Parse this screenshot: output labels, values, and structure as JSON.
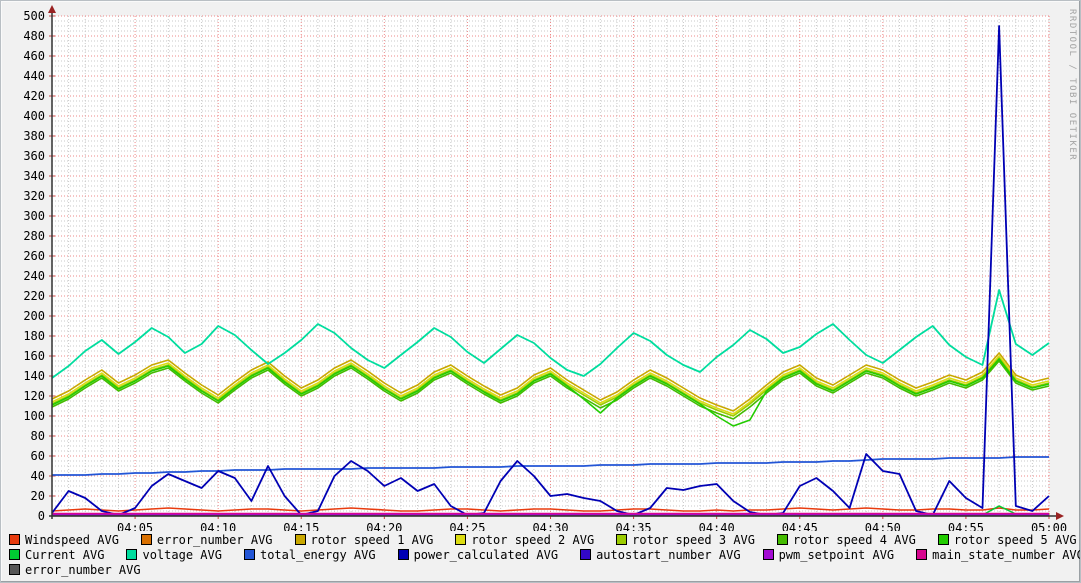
{
  "watermark": "RRDTOOL / TOBI OETIKER",
  "palette": {
    "plot_background": "#ffffff",
    "outer_background": "#f1f1f1",
    "major_grid": "#ee8888",
    "minor_grid": "#c9c9c9",
    "axis": "#333333",
    "arrow": "#992222",
    "tick_major": "#cc4444",
    "tick_minor": "#999999",
    "label_color": "#000000",
    "watermark_color": "#a3a3a3"
  },
  "chart_data": {
    "type": "line",
    "title": "",
    "xlabel": "",
    "ylabel": "",
    "grid": true,
    "legend_position": "bottom",
    "ylim": [
      0,
      500
    ],
    "y_major_step": 20,
    "y_minor_step": 5,
    "y_tick_labels": [
      "0",
      "20",
      "40",
      "60",
      "80",
      "100",
      "120",
      "140",
      "160",
      "180",
      "200",
      "220",
      "240",
      "260",
      "280",
      "300",
      "320",
      "340",
      "360",
      "380",
      "400",
      "420",
      "440",
      "460",
      "480",
      "500"
    ],
    "x_range_minutes": [
      0,
      60
    ],
    "x_minor_step_minutes": 1,
    "x_major_step_minutes": 5,
    "x_tick_labels": [
      {
        "t": 5,
        "label": "04:05"
      },
      {
        "t": 10,
        "label": "04:10"
      },
      {
        "t": 15,
        "label": "04:15"
      },
      {
        "t": 20,
        "label": "04:20"
      },
      {
        "t": 25,
        "label": "04:25"
      },
      {
        "t": 30,
        "label": "04:30"
      },
      {
        "t": 35,
        "label": "04:35"
      },
      {
        "t": 40,
        "label": "04:40"
      },
      {
        "t": 45,
        "label": "04:45"
      },
      {
        "t": 50,
        "label": "04:50"
      },
      {
        "t": 55,
        "label": "04:55"
      },
      {
        "t": 60,
        "label": "05:00"
      }
    ],
    "x": [
      0,
      1,
      2,
      3,
      4,
      5,
      6,
      7,
      8,
      9,
      10,
      11,
      12,
      13,
      14,
      15,
      16,
      17,
      18,
      19,
      20,
      21,
      22,
      23,
      24,
      25,
      26,
      27,
      28,
      29,
      30,
      31,
      32,
      33,
      34,
      35,
      36,
      37,
      38,
      39,
      40,
      41,
      42,
      43,
      44,
      45,
      46,
      47,
      48,
      49,
      50,
      51,
      52,
      53,
      54,
      55,
      56,
      57,
      58,
      59,
      60
    ],
    "series": [
      {
        "name": "Windspeed AVG",
        "color": "#e83b0e",
        "legend_row": 0,
        "width": 1.6,
        "values": [
          5,
          6,
          7,
          6,
          5,
          6,
          7,
          8,
          7,
          6,
          5,
          6,
          7,
          7,
          6,
          5,
          6,
          7,
          8,
          7,
          6,
          5,
          5,
          6,
          7,
          7,
          6,
          5,
          6,
          7,
          7,
          6,
          5,
          5,
          6,
          7,
          7,
          6,
          5,
          5,
          6,
          5,
          6,
          6,
          7,
          8,
          7,
          6,
          7,
          8,
          7,
          6,
          6,
          7,
          7,
          6,
          6,
          8,
          6,
          6,
          7
        ]
      },
      {
        "name": "error_number AVG",
        "color": "#d97000",
        "legend_row": 0,
        "width": 1.4,
        "flat": 0.3
      },
      {
        "name": "rotor speed 1 AVG",
        "color": "#c9a800",
        "legend_row": 0,
        "width": 1.6,
        "values": [
          117,
          125,
          136,
          146,
          133,
          141,
          151,
          156,
          143,
          131,
          121,
          134,
          146,
          154,
          140,
          128,
          136,
          148,
          156,
          145,
          133,
          123,
          131,
          144,
          151,
          140,
          130,
          121,
          128,
          141,
          148,
          136,
          126,
          116,
          124,
          136,
          146,
          138,
          128,
          118,
          111,
          105,
          117,
          131,
          144,
          151,
          138,
          131,
          141,
          151,
          146,
          136,
          128,
          134,
          141,
          136,
          144,
          163,
          141,
          134,
          138
        ]
      },
      {
        "name": "rotor speed 2 AVG",
        "color": "#dcdc12",
        "legend_row": 0,
        "width": 1.6,
        "values": [
          114,
          122,
          133,
          143,
          130,
          138,
          148,
          153,
          140,
          128,
          118,
          131,
          143,
          151,
          137,
          125,
          133,
          145,
          153,
          142,
          130,
          120,
          128,
          141,
          148,
          137,
          127,
          118,
          125,
          138,
          145,
          133,
          123,
          113,
          121,
          133,
          143,
          135,
          125,
          115,
          108,
          102,
          114,
          128,
          141,
          148,
          135,
          128,
          138,
          148,
          143,
          133,
          125,
          131,
          138,
          133,
          141,
          160,
          138,
          131,
          135
        ]
      },
      {
        "name": "rotor speed 3 AVG",
        "color": "#9ccc00",
        "legend_row": 0,
        "width": 1.6,
        "values": [
          112,
          120,
          131,
          141,
          128,
          136,
          146,
          151,
          138,
          126,
          116,
          129,
          141,
          149,
          135,
          123,
          131,
          143,
          151,
          140,
          128,
          118,
          126,
          139,
          146,
          135,
          125,
          116,
          123,
          136,
          143,
          131,
          121,
          111,
          119,
          131,
          141,
          133,
          123,
          113,
          106,
          100,
          112,
          126,
          139,
          146,
          133,
          126,
          136,
          146,
          141,
          131,
          123,
          129,
          136,
          131,
          139,
          158,
          136,
          129,
          133
        ]
      },
      {
        "name": "rotor speed 4 AVG",
        "color": "#44bb00",
        "legend_row": 0,
        "width": 1.6,
        "values": [
          109,
          117,
          128,
          138,
          125,
          133,
          143,
          148,
          135,
          123,
          113,
          126,
          138,
          146,
          132,
          120,
          128,
          140,
          148,
          137,
          125,
          115,
          123,
          136,
          143,
          132,
          122,
          113,
          120,
          133,
          140,
          128,
          118,
          108,
          116,
          128,
          138,
          130,
          120,
          110,
          103,
          97,
          109,
          123,
          136,
          143,
          130,
          123,
          133,
          143,
          138,
          128,
          120,
          126,
          133,
          128,
          136,
          155,
          133,
          126,
          130
        ]
      },
      {
        "name": "rotor speed 5 AVG",
        "color": "#22cc00",
        "legend_row": 0,
        "width": 1.6,
        "values": [
          111,
          119,
          130,
          140,
          127,
          135,
          145,
          150,
          137,
          125,
          115,
          128,
          140,
          148,
          134,
          122,
          130,
          142,
          150,
          139,
          127,
          117,
          125,
          138,
          145,
          134,
          124,
          115,
          122,
          135,
          142,
          130,
          117,
          103,
          118,
          130,
          140,
          132,
          122,
          112,
          100,
          90,
          96,
          125,
          138,
          145,
          132,
          125,
          135,
          145,
          140,
          130,
          122,
          128,
          135,
          130,
          138,
          157,
          135,
          128,
          132
        ]
      },
      {
        "name": "Current AVG",
        "color": "#00cc33",
        "legend_row": 1,
        "width": 1.5,
        "values": [
          1,
          1,
          1,
          1,
          1,
          1,
          1,
          1,
          1,
          1,
          1,
          1,
          1,
          1,
          1,
          1,
          1,
          1,
          1,
          1,
          1,
          1,
          1,
          1,
          1,
          1,
          1,
          1,
          1,
          1,
          1,
          1,
          1,
          1,
          1,
          1,
          1,
          1,
          1,
          1,
          1,
          1,
          1,
          1,
          1,
          1,
          1,
          1,
          1,
          1,
          1,
          1,
          1,
          1,
          1,
          1,
          1,
          10,
          2,
          1,
          1
        ]
      },
      {
        "name": "voltage AVG",
        "color": "#00dd9e",
        "legend_row": 1,
        "width": 1.8,
        "values": [
          138,
          150,
          165,
          176,
          162,
          174,
          188,
          179,
          163,
          172,
          190,
          181,
          166,
          152,
          163,
          176,
          192,
          183,
          168,
          156,
          148,
          161,
          174,
          188,
          179,
          164,
          153,
          167,
          181,
          173,
          158,
          146,
          140,
          152,
          168,
          183,
          175,
          161,
          151,
          144,
          159,
          171,
          186,
          177,
          163,
          169,
          182,
          192,
          176,
          161,
          153,
          166,
          179,
          190,
          171,
          159,
          151,
          226,
          172,
          161,
          173
        ]
      },
      {
        "name": "total_energy AVG",
        "color": "#2356d6",
        "legend_row": 1,
        "width": 1.8,
        "values": [
          41,
          41,
          41,
          42,
          42,
          43,
          43,
          44,
          44,
          45,
          45,
          46,
          46,
          46,
          47,
          47,
          47,
          47,
          47,
          48,
          48,
          48,
          48,
          48,
          49,
          49,
          49,
          49,
          50,
          50,
          50,
          50,
          50,
          51,
          51,
          51,
          52,
          52,
          52,
          52,
          53,
          53,
          53,
          53,
          54,
          54,
          54,
          55,
          55,
          56,
          57,
          57,
          57,
          57,
          58,
          58,
          58,
          58,
          59,
          59,
          59
        ]
      },
      {
        "name": "power_calculated AVG",
        "color": "#0000b4",
        "legend_row": 1,
        "width": 1.8,
        "values": [
          3,
          25,
          18,
          5,
          1,
          8,
          30,
          42,
          35,
          28,
          45,
          38,
          15,
          50,
          20,
          1,
          5,
          40,
          55,
          45,
          30,
          38,
          25,
          32,
          10,
          1,
          3,
          35,
          55,
          40,
          20,
          22,
          18,
          15,
          5,
          1,
          8,
          28,
          26,
          30,
          32,
          15,
          4,
          1,
          3,
          30,
          38,
          25,
          8,
          62,
          45,
          42,
          5,
          1,
          35,
          18,
          8,
          490,
          10,
          5,
          20
        ]
      },
      {
        "name": "autostart_number AVG",
        "color": "#3308c9",
        "legend_row": 1,
        "width": 1.4,
        "flat": 0.5
      },
      {
        "name": "pwm_setpoint AVG",
        "color": "#a30bd2",
        "legend_row": 1,
        "width": 1.5,
        "flat": 1.3
      },
      {
        "name": "main_state_number AVG",
        "color": "#d6068e",
        "legend_row": 1,
        "width": 1.6,
        "flat": 2.5
      },
      {
        "name": "error_number AVG",
        "color": "#555555",
        "legend_row": 2,
        "width": 1.4,
        "flat": 0.1
      }
    ]
  }
}
